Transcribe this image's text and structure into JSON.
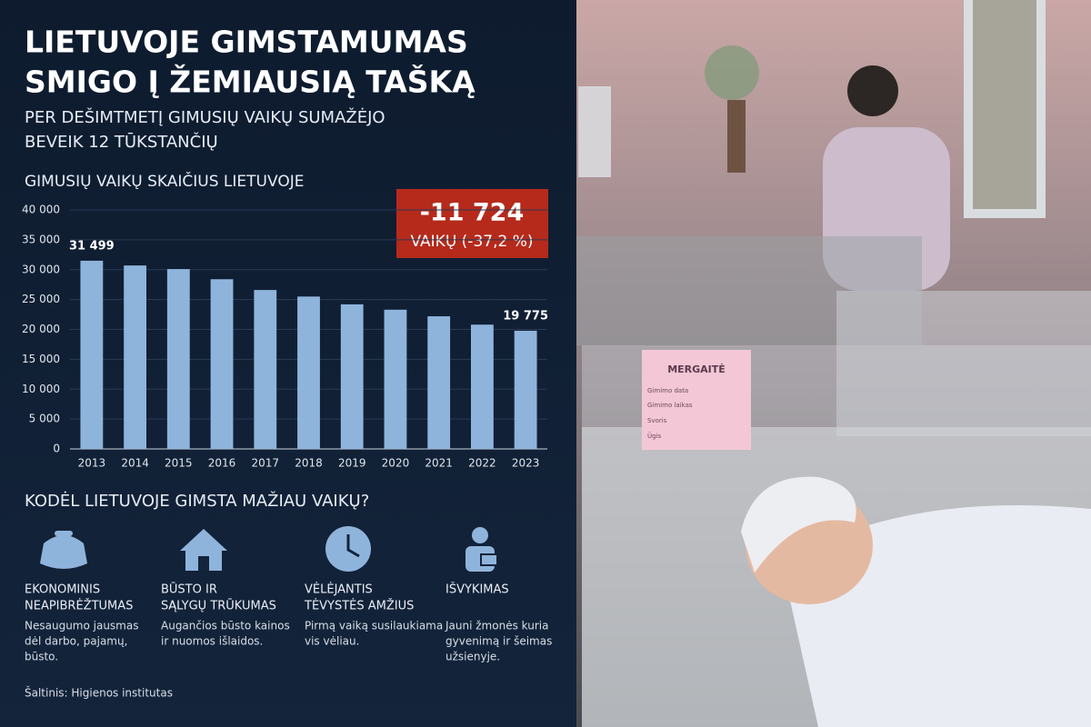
{
  "header": {
    "title": [
      "LIETUVOJE GIMSTAMUMAS",
      "SMIGO Į ŽEMIAUSIĄ TAŠKĄ"
    ],
    "subtitle": [
      "PER DEŠIMTMETĮ GIMUSIŲ VAIKŲ SUMAŽĖJO",
      "BEVEIK 12 TŪKSTANČIŲ"
    ]
  },
  "chart_data": {
    "type": "bar",
    "title": "GIMUSIŲ VAIKŲ SKAIČIUS LIETUVOJE",
    "categories": [
      "2013",
      "2014",
      "2015",
      "2016",
      "2017",
      "2018",
      "2019",
      "2020",
      "2021",
      "2022",
      "2023"
    ],
    "values": [
      31499,
      30700,
      30100,
      28400,
      26600,
      25500,
      24200,
      23300,
      22200,
      20800,
      19775
    ],
    "value_labels": [
      "31 499",
      null,
      null,
      null,
      null,
      null,
      null,
      null,
      null,
      null,
      "19 775"
    ],
    "color": "#8fb4dc",
    "ylim": [
      0,
      40000
    ],
    "yticks": [
      0,
      {
        "value": 5000,
        "label": "5 000"
      },
      {
        "value": 10000,
        "label": "10 000"
      },
      {
        "value": 15000,
        "label": "15 000"
      },
      {
        "value": 20000,
        "label": "20 000"
      },
      {
        "value": 25000,
        "label": "25 000"
      },
      {
        "value": 30000,
        "label": "30 000"
      },
      {
        "value": 35000,
        "label": "35 000"
      },
      {
        "value": 40000,
        "label": "40 000"
      }
    ],
    "grid": true
  },
  "callout": {
    "value": "-11 724",
    "text": "VAIKŲ (-37,2 %)"
  },
  "reasons": {
    "title": "KODĖL LIETUVOJE GIMSTA MAŽIAU VAIKŲ?",
    "items": [
      {
        "title": [
          "EKONOMINIS",
          "NEAPIBRĖŽTUMAS"
        ],
        "text": [
          "Nesaugumo jausmas",
          "dėl darbo, pajamų,",
          "būsto."
        ]
      },
      {
        "title": [
          "BŪSTO IR",
          "SĄLYGŲ TRŪKUMAS"
        ],
        "text": [
          "Augančios būsto kainos",
          "ir nuomos išlaidos."
        ]
      },
      {
        "title": [
          "VĖLĖJANTIS",
          "TĖVYSTĖS AMŽIUS"
        ],
        "text": [
          "Pirmą vaiką susilaukiama",
          "vis vėliau."
        ]
      },
      {
        "title": [
          "IŠVYKIMAS"
        ],
        "text": [
          "Jauni žmonės kuria",
          "gyvenimą ir šeimas",
          "užsienyje."
        ]
      }
    ]
  },
  "source": "Šaltinis: Higienos institutas",
  "photo_tag": {
    "title": "MERGAITĖ",
    "fields": [
      "Gimimo data",
      "Gimimo laikas",
      "Svoris",
      "Ūgis"
    ]
  }
}
